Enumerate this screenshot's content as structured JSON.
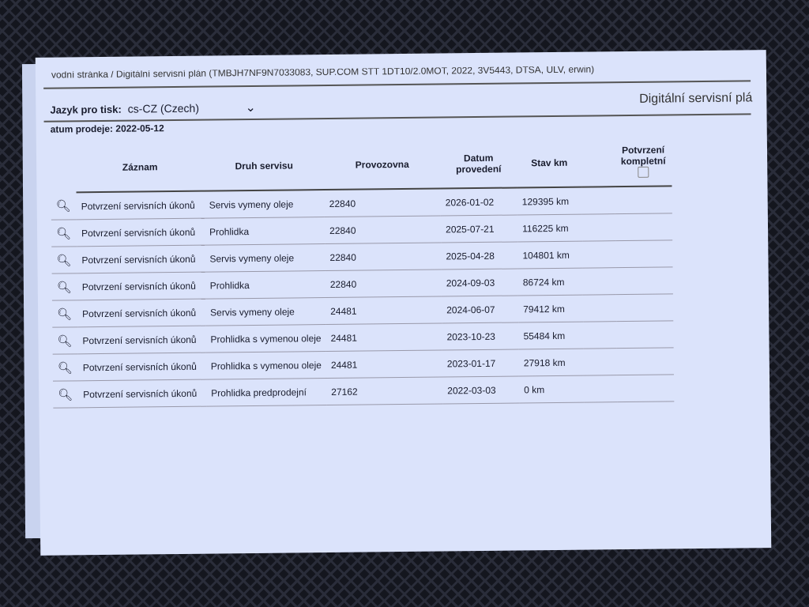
{
  "header": {
    "breadcrumb": "vodní stránka / Digitální servisní plán (TMBJH7NF9N7033083, SUP.COM STT 1DT10/2.0MOT, 2022, 3V5443, DTSA, ULV, erwin)",
    "language_label": "Jazyk pro tisk:",
    "language_value": "cs-CZ (Czech)",
    "page_title": "Digitální servisní plá",
    "sale_date": "atum prodeje: 2022-05-12"
  },
  "table": {
    "headers": [
      "Záznam",
      "Druh servisu",
      "Provozovna",
      "Datum provedení",
      "Stav km",
      "Potvrzení kompletní"
    ],
    "rows": [
      {
        "record": "Potvrzení servisních úkonů",
        "type": "Servis vymeny oleje",
        "workshop": "22840",
        "date": "2026-01-02",
        "km": "129395 km"
      },
      {
        "record": "Potvrzení servisních úkonů",
        "type": "Prohlidka",
        "workshop": "22840",
        "date": "2025-07-21",
        "km": "116225 km"
      },
      {
        "record": "Potvrzení servisních úkonů",
        "type": "Servis vymeny oleje",
        "workshop": "22840",
        "date": "2025-04-28",
        "km": "104801 km"
      },
      {
        "record": "Potvrzení servisních úkonů",
        "type": "Prohlidka",
        "workshop": "22840",
        "date": "2024-09-03",
        "km": "86724 km"
      },
      {
        "record": "Potvrzení servisních úkonů",
        "type": "Servis vymeny oleje",
        "workshop": "24481",
        "date": "2024-06-07",
        "km": "79412 km"
      },
      {
        "record": "Potvrzení servisních úkonů",
        "type": "Prohlidka s vymenou oleje",
        "workshop": "24481",
        "date": "2023-10-23",
        "km": "55484 km"
      },
      {
        "record": "Potvrzení servisních úkonů",
        "type": "Prohlidka s vymenou oleje",
        "workshop": "24481",
        "date": "2023-01-17",
        "km": "27918 km"
      },
      {
        "record": "Potvrzení servisních úkonů",
        "type": "Prohlidka predprodejní",
        "workshop": "27162",
        "date": "2022-03-03",
        "km": "0 km"
      }
    ]
  }
}
